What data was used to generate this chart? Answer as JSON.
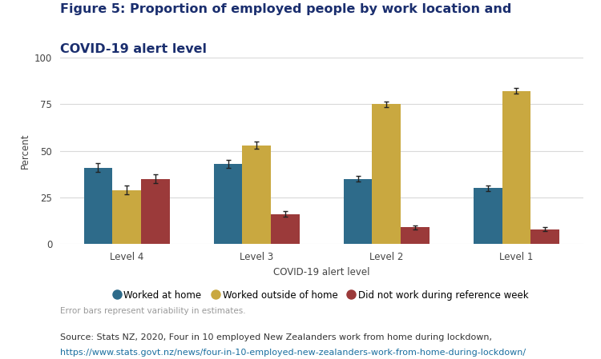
{
  "title_line1": "Figure 5: Proportion of employed people by work location and",
  "title_line2": "COVID-19 alert level",
  "title_color": "#1a2e6e",
  "categories": [
    "Level 4",
    "Level 3",
    "Level 2",
    "Level 1"
  ],
  "xlabel": "COVID-19 alert level",
  "ylabel": "Percent",
  "ylim": [
    0,
    100
  ],
  "yticks": [
    0,
    25,
    50,
    75,
    100
  ],
  "series": [
    {
      "name": "Worked at home",
      "color": "#2e6b8a",
      "values": [
        41,
        43,
        35,
        30
      ],
      "errors": [
        2.5,
        2.0,
        1.5,
        1.5
      ]
    },
    {
      "name": "Worked outside of home",
      "color": "#c9a840",
      "values": [
        29,
        53,
        75,
        82
      ],
      "errors": [
        2.5,
        2.0,
        1.5,
        1.5
      ]
    },
    {
      "name": "Did not work during reference week",
      "color": "#9b3a3a",
      "values": [
        35,
        16,
        9,
        8
      ],
      "errors": [
        2.5,
        1.5,
        1.0,
        1.0
      ]
    }
  ],
  "bar_width": 0.22,
  "source_text": "Source: Stats NZ, 2020, Four in 10 employed New Zealanders work from home during lockdown,",
  "source_url": "https://www.stats.govt.nz/news/four-in-10-employed-new-zealanders-work-from-home-during-lockdown/",
  "error_bar_note": "Error bars represent variability in estimates.",
  "background_color": "#ffffff",
  "grid_color": "#d9d9d9"
}
